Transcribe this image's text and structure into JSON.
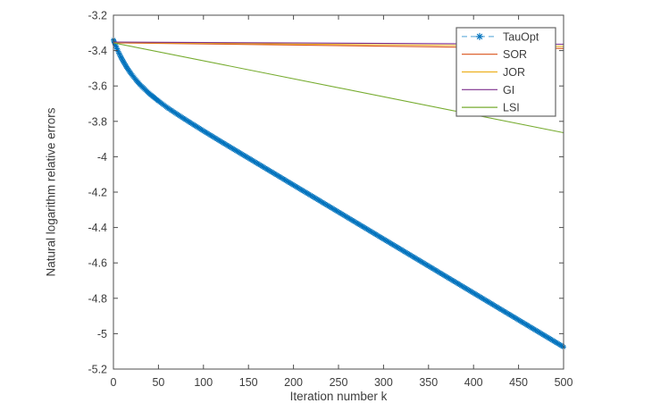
{
  "figure": {
    "background": "#ffffff",
    "axes_color": "#4d4d4d",
    "text_color": "#3d3d3d"
  },
  "chart_data": {
    "type": "line",
    "title": "",
    "xlabel": "Iteration number k",
    "ylabel": "Natural logarithm relative errors",
    "xlim": [
      0,
      500
    ],
    "ylim": [
      -5.2,
      -3.2
    ],
    "grid": false,
    "legend_position": "northeast",
    "xticks": [
      0,
      50,
      100,
      150,
      200,
      250,
      300,
      350,
      400,
      450,
      500
    ],
    "xtick_labels": [
      "0",
      "50",
      "100",
      "150",
      "200",
      "250",
      "300",
      "350",
      "400",
      "450",
      "500"
    ],
    "yticks": [
      -5.2,
      -5.0,
      -4.8,
      -4.6,
      -4.4,
      -4.2,
      -4.0,
      -3.8,
      -3.6,
      -3.4,
      -3.2
    ],
    "ytick_labels": [
      "-5.2",
      "-5",
      "-4.8",
      "-4.6",
      "-4.4",
      "-4.2",
      "-4",
      "-3.8",
      "-3.6",
      "-3.4",
      "-3.2"
    ],
    "series": [
      {
        "name": "TauOpt",
        "color": "#0072BD",
        "legend_dash_color": "#6FB3DE",
        "line_style": "dashed",
        "marker": "asterisk",
        "x": [
          0,
          2,
          4,
          6,
          8,
          10,
          15,
          20,
          25,
          30,
          40,
          50,
          60,
          70,
          80,
          90,
          100,
          120,
          140,
          160,
          180,
          200,
          220,
          240,
          260,
          280,
          300,
          320,
          340,
          360,
          380,
          400,
          420,
          440,
          460,
          480,
          500
        ],
        "y": [
          -3.34,
          -3.366,
          -3.39,
          -3.413,
          -3.434,
          -3.453,
          -3.497,
          -3.534,
          -3.566,
          -3.595,
          -3.644,
          -3.685,
          -3.723,
          -3.757,
          -3.79,
          -3.822,
          -3.854,
          -3.916,
          -3.977,
          -4.038,
          -4.099,
          -4.16,
          -4.221,
          -4.282,
          -4.343,
          -4.404,
          -4.465,
          -4.526,
          -4.587,
          -4.648,
          -4.709,
          -4.77,
          -4.831,
          -4.892,
          -4.953,
          -5.014,
          -5.075
        ]
      },
      {
        "name": "SOR",
        "color": "#D95319",
        "line_style": "solid",
        "marker": "none",
        "x": [
          0,
          500
        ],
        "y": [
          -3.356,
          -3.388
        ]
      },
      {
        "name": "JOR",
        "color": "#EDB120",
        "line_style": "solid",
        "marker": "none",
        "x": [
          0,
          500
        ],
        "y": [
          -3.354,
          -3.376
        ]
      },
      {
        "name": "GI",
        "color": "#7E2F8E",
        "line_style": "solid",
        "marker": "none",
        "x": [
          0,
          500
        ],
        "y": [
          -3.352,
          -3.364
        ]
      },
      {
        "name": "LSI",
        "color": "#77AC30",
        "line_style": "solid",
        "marker": "none",
        "x": [
          0,
          500
        ],
        "y": [
          -3.356,
          -3.864
        ]
      }
    ]
  }
}
